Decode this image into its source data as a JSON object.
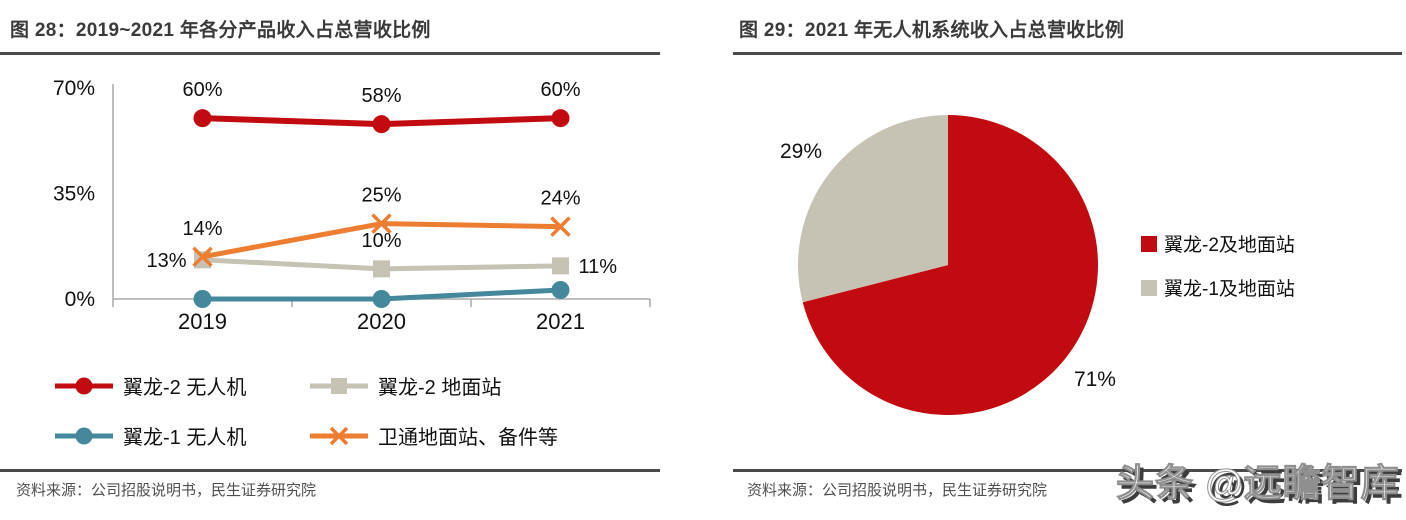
{
  "page": {
    "watermark": "头条 @远瞻智库"
  },
  "figure28": {
    "title": "图 28：2019~2021 年各分产品收入占总营收比例",
    "source": "资料来源：公司招股说明书，民生证券研究院",
    "chart_data": {
      "type": "line",
      "categories": [
        "2019",
        "2020",
        "2021"
      ],
      "series": [
        {
          "name": "翼龙-2 无人机",
          "values": [
            60,
            58,
            60
          ],
          "labels": [
            "60%",
            "58%",
            "60%"
          ],
          "color": "#c20b10",
          "marker": "circle",
          "label_placement": [
            "above",
            "above",
            "above"
          ]
        },
        {
          "name": "翼龙-2 地面站",
          "values": [
            13,
            10,
            11
          ],
          "labels": [
            "13%",
            "10%",
            "11%"
          ],
          "color": "#c6c2b4",
          "marker": "square",
          "label_placement": [
            "left",
            "above",
            "right"
          ]
        },
        {
          "name": "翼龙-1 无人机",
          "values": [
            0,
            0,
            3
          ],
          "labels": [
            "",
            "",
            ""
          ],
          "color": "#45879b",
          "marker": "circle",
          "label_placement": [
            "none",
            "none",
            "none"
          ]
        },
        {
          "name": "卫通地面站、备件等",
          "values": [
            14,
            25,
            24
          ],
          "labels": [
            "14%",
            "25%",
            "24%"
          ],
          "color": "#ed7d31",
          "marker": "x",
          "label_placement": [
            "above",
            "above",
            "above"
          ]
        }
      ],
      "yticks": [
        {
          "value": 0,
          "label": "0%"
        },
        {
          "value": 35,
          "label": "35%"
        },
        {
          "value": 70,
          "label": "70%"
        }
      ],
      "ylim": [
        0,
        70
      ],
      "xlabel": "",
      "ylabel": "",
      "grid": false,
      "legend_position": "bottom"
    }
  },
  "figure29": {
    "title": "图 29：2021 年无人机系统收入占总营收比例",
    "source": "资料来源：公司招股说明书，民生证券研究院",
    "chart_data": {
      "type": "pie",
      "slices": [
        {
          "name": "翼龙-2及地面站",
          "value": 71,
          "label": "71%",
          "color": "#c20b10"
        },
        {
          "name": "翼龙-1及地面站",
          "value": 29,
          "label": "29%",
          "color": "#c6c2b4"
        }
      ],
      "start_angle_deg": -90,
      "direction": "clockwise",
      "legend_position": "right"
    }
  }
}
